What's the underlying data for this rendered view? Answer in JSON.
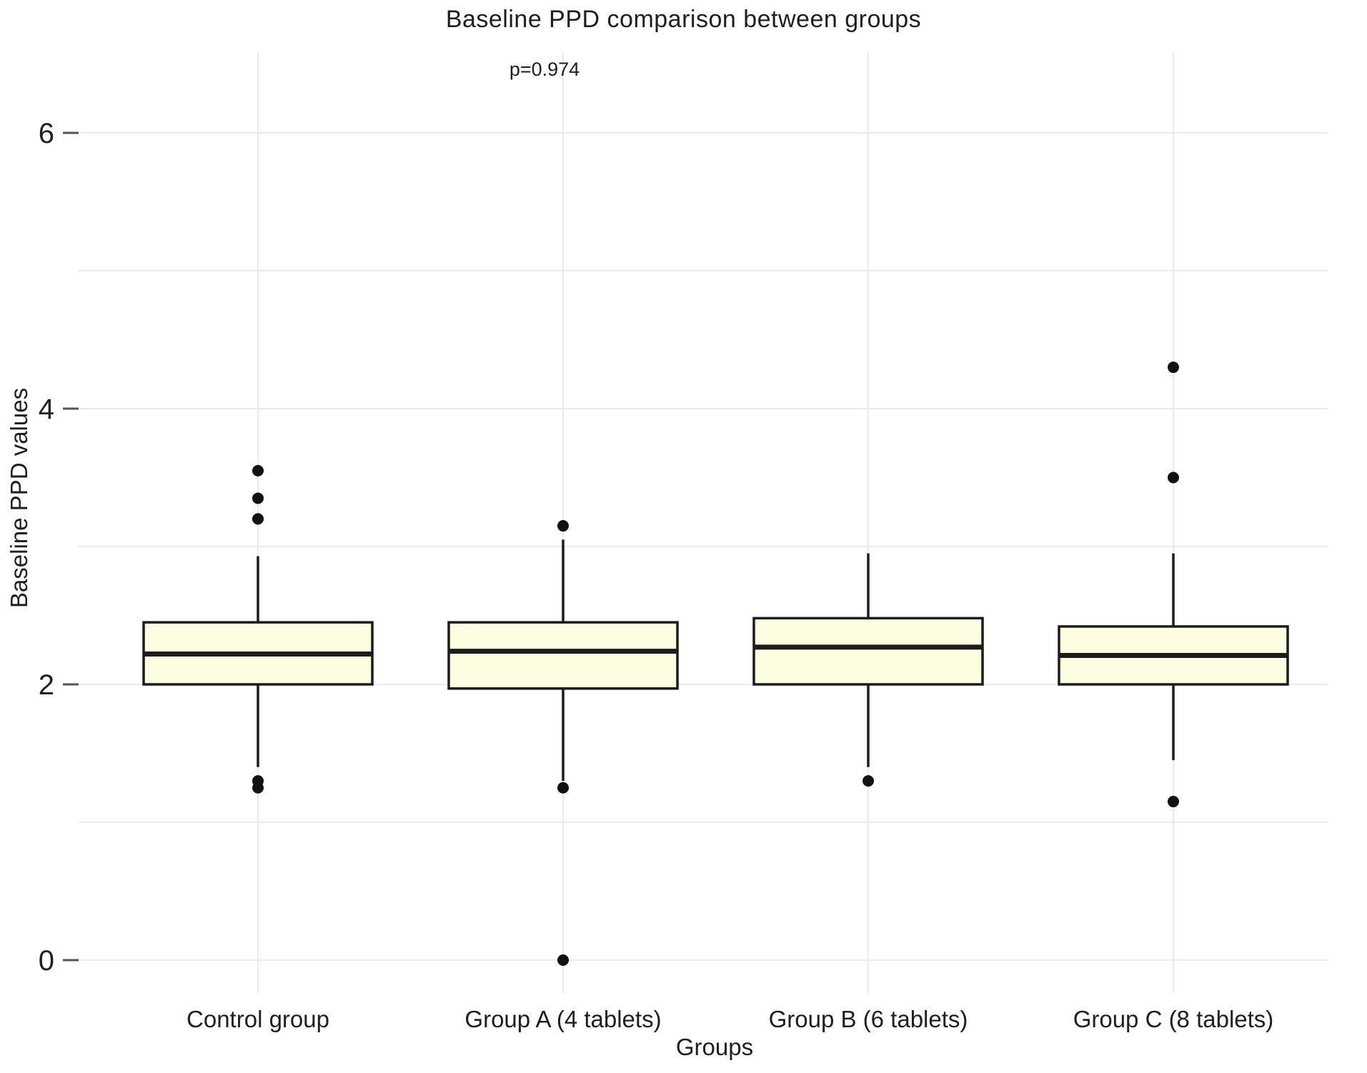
{
  "chart_data": {
    "type": "boxplot",
    "title": "Baseline PPD comparison between groups",
    "annotation": "p=0.974",
    "xlabel": "Groups",
    "ylabel": "Baseline PPD values",
    "ylim": [
      0,
      6.5
    ],
    "yticks": [
      0,
      2,
      4,
      6
    ],
    "ygridlines": [
      0,
      1,
      2,
      3,
      4,
      5,
      6
    ],
    "grid": true,
    "legend": "none",
    "box_fill_color": "#fdfde2",
    "box_stroke_color": "#1c1c1c",
    "outlier_color": "#111111",
    "gridline_color": "#ebebeb",
    "tick_color": "#555555",
    "text_color": "#1f1f1f",
    "categories": [
      "Control group",
      "Group A (4 tablets)",
      "Group B (6 tablets)",
      "Group C (8 tablets)"
    ],
    "series": [
      {
        "name": "Control group",
        "whisker_low": 1.4,
        "q1": 2.0,
        "median": 2.22,
        "q3": 2.45,
        "whisker_high": 2.93,
        "outliers_high": [
          3.2,
          3.35,
          3.55
        ],
        "outliers_low": [
          1.3,
          1.25
        ]
      },
      {
        "name": "Group A (4 tablets)",
        "whisker_low": 1.3,
        "q1": 1.97,
        "median": 2.24,
        "q3": 2.45,
        "whisker_high": 3.05,
        "outliers_high": [
          3.15
        ],
        "outliers_low": [
          1.25,
          0
        ]
      },
      {
        "name": "Group B (6 tablets)",
        "whisker_low": 1.4,
        "q1": 2.0,
        "median": 2.27,
        "q3": 2.48,
        "whisker_high": 2.95,
        "outliers_high": [],
        "outliers_low": [
          1.3
        ]
      },
      {
        "name": "Group C (8 tablets)",
        "whisker_low": 1.45,
        "q1": 2.0,
        "median": 2.21,
        "q3": 2.42,
        "whisker_high": 2.95,
        "outliers_high": [
          4.3,
          3.5
        ],
        "outliers_low": [
          1.15
        ]
      }
    ]
  }
}
